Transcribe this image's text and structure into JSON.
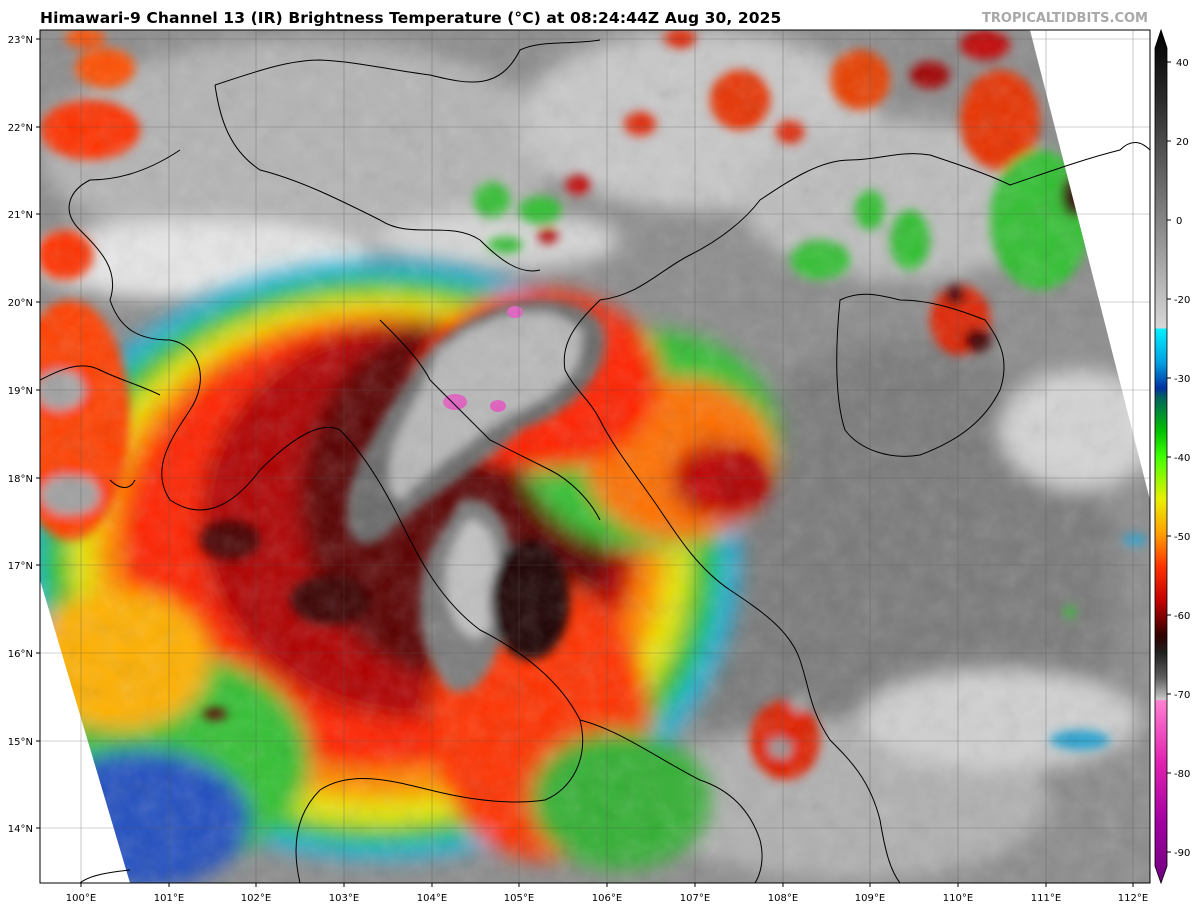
{
  "header": {
    "title": "Himawari-9 Channel 13 (IR) Brightness Temperature (°C) at 08:24:44Z Aug 30, 2025",
    "credit": "TROPICALTIDBITS.COM"
  },
  "map": {
    "region": "Indochina / South China Sea",
    "lon_range": [
      99.5,
      112.2
    ],
    "lat_range": [
      13.4,
      23.1
    ],
    "lat_labels": [
      "14°N",
      "15°N",
      "16°N",
      "17°N",
      "18°N",
      "19°N",
      "20°N",
      "21°N",
      "22°N",
      "23°N"
    ],
    "lon_labels": [
      "100°E",
      "101°E",
      "102°E",
      "103°E",
      "104°E",
      "105°E",
      "106°E",
      "107°E",
      "108°E",
      "109°E",
      "110°E",
      "111°E",
      "112°E"
    ]
  },
  "colorbar": {
    "units": "°C",
    "range": [
      -95,
      45
    ],
    "tick_labels": [
      "40",
      "20",
      "0",
      "-20",
      "-30",
      "-40",
      "-50",
      "-60",
      "-70",
      "-80",
      "-90"
    ],
    "palette": {
      "warm": "#ffffff",
      "gray_dark": "#202020",
      "cyan": "#00e0f0",
      "blue": "#0050c0",
      "green": "#20c020",
      "yellow": "#f0f000",
      "orange": "#f09000",
      "red": "#e00000",
      "dark_red": "#600000",
      "magenta": "#e040c0",
      "purple": "#800090"
    }
  }
}
